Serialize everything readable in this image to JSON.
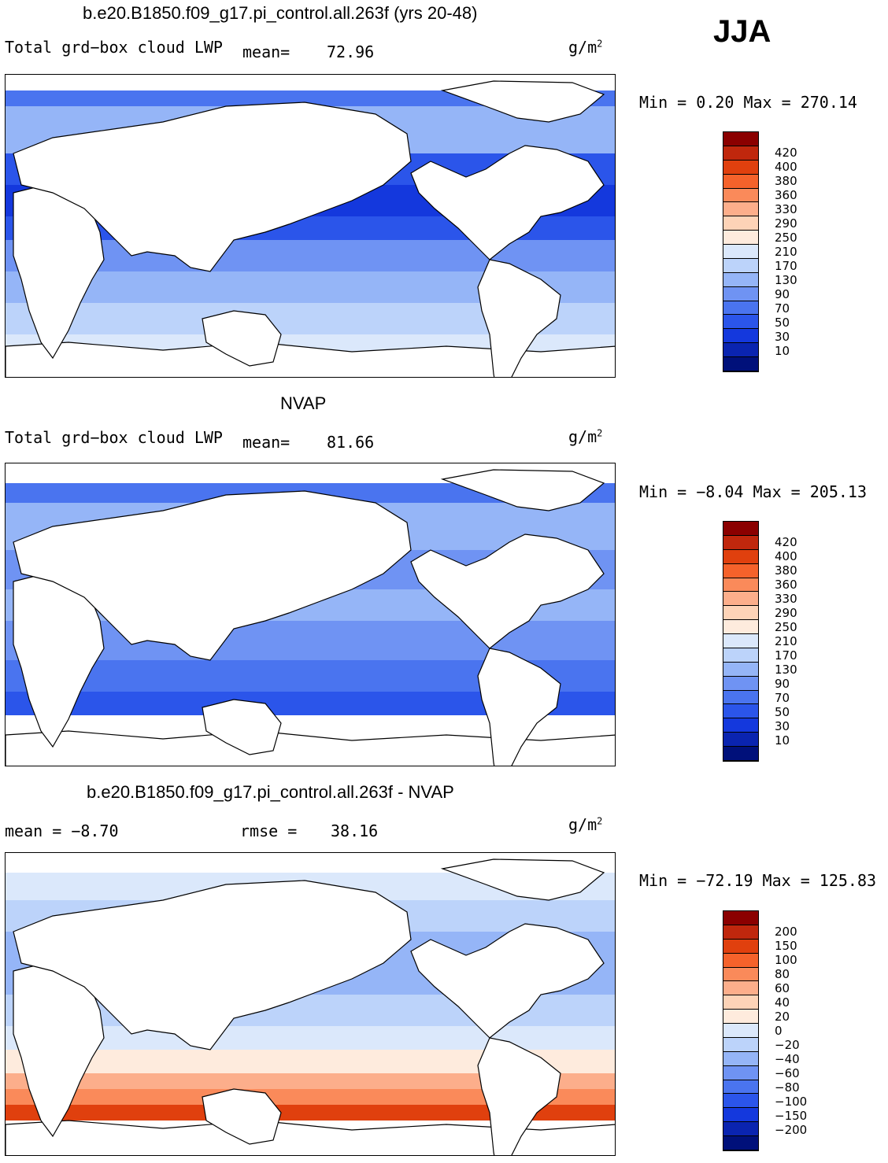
{
  "season": "JJA",
  "panels": [
    {
      "title": "b.e20.B1850.f09_g17.pi_control.all.263f (yrs 20-48)",
      "left_text": "Total grd−box cloud LWP",
      "mid_label": "mean=",
      "mid_value": "72.96",
      "units": "g/m",
      "units_exp": "2",
      "minmax": "Min =   0.20 Max = 270.14",
      "colorbar_labels": [
        "420",
        "400",
        "380",
        "360",
        "330",
        "290",
        "250",
        "210",
        "170",
        "130",
        "90",
        "70",
        "50",
        "30",
        "10"
      ],
      "colors": [
        "#8b0000",
        "#c0270d",
        "#e0400e",
        "#f5622b",
        "#fa8a5a",
        "#fcae8b",
        "#fdd3b7",
        "#feebdd",
        "#dbe8fb",
        "#bcd3fa",
        "#95b5f7",
        "#6f93f3",
        "#4a74ef",
        "#2b55ea",
        "#1438dd",
        "#0a24b0",
        "#00107a"
      ],
      "field": "model"
    },
    {
      "title": "NVAP",
      "left_text": "Total grd−box cloud LWP",
      "mid_label": "mean=",
      "mid_value": "81.66",
      "units": "g/m",
      "units_exp": "2",
      "minmax": "Min =  −8.04 Max = 205.13",
      "colorbar_labels": [
        "420",
        "400",
        "380",
        "360",
        "330",
        "290",
        "250",
        "210",
        "170",
        "130",
        "90",
        "70",
        "50",
        "30",
        "10"
      ],
      "colors": [
        "#8b0000",
        "#c0270d",
        "#e0400e",
        "#f5622b",
        "#fa8a5a",
        "#fcae8b",
        "#fdd3b7",
        "#feebdd",
        "#dbe8fb",
        "#bcd3fa",
        "#95b5f7",
        "#6f93f3",
        "#4a74ef",
        "#2b55ea",
        "#1438dd",
        "#0a24b0",
        "#00107a"
      ],
      "field": "obs"
    },
    {
      "title": "b.e20.B1850.f09_g17.pi_control.all.263f - NVAP",
      "left_text": "mean =   −8.70",
      "mid_label": "rmse =",
      "mid_value": "38.16",
      "units": "g/m",
      "units_exp": "2",
      "minmax": "Min = −72.19 Max = 125.83",
      "colorbar_labels": [
        "200",
        "150",
        "100",
        "80",
        "60",
        "40",
        "20",
        "0",
        "−20",
        "−40",
        "−60",
        "−80",
        "−100",
        "−150",
        "−200"
      ],
      "colors": [
        "#8b0000",
        "#c0270d",
        "#e0400e",
        "#f5622b",
        "#fa8a5a",
        "#fcae8b",
        "#fdd3b7",
        "#feebdd",
        "#dbe8fb",
        "#bcd3fa",
        "#95b5f7",
        "#6f93f3",
        "#4a74ef",
        "#2b55ea",
        "#1438dd",
        "#0a24b0",
        "#00107a"
      ],
      "field": "diff"
    }
  ]
}
